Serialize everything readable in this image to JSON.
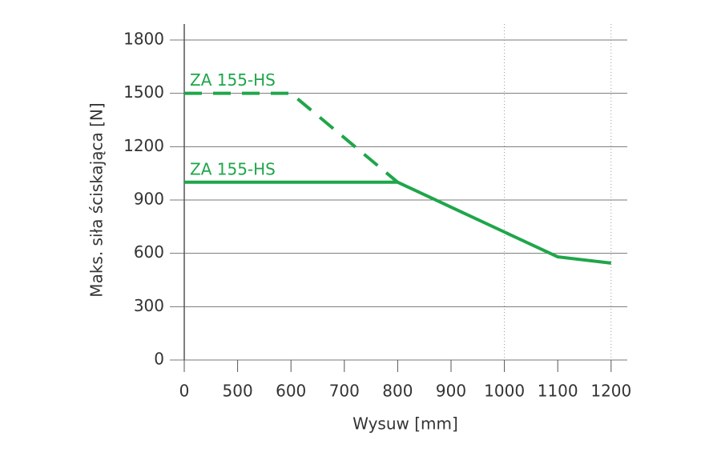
{
  "chart_data": {
    "type": "line",
    "x_label": "Wysuw [mm]",
    "y_label": "Maks. siła ściskająca [N]",
    "categories": [
      "0",
      "500",
      "600",
      "700",
      "800",
      "900",
      "1000",
      "1100",
      "1200"
    ],
    "series": [
      {
        "name": "ZA 155-HS",
        "color": "#1fa64a",
        "dashed": true,
        "values": [
          1500,
          1500,
          1500,
          1250,
          1000,
          null,
          null,
          null,
          null
        ]
      },
      {
        "name": "ZA 155-HS",
        "color": "#1fa64a",
        "dashed": false,
        "values": [
          1000,
          1000,
          1000,
          1000,
          1000,
          860,
          720,
          580,
          545
        ]
      }
    ],
    "ylim": [
      0,
      1800
    ],
    "yticks": [
      0,
      300,
      600,
      900,
      1200,
      1500,
      1800
    ],
    "grid": true
  }
}
